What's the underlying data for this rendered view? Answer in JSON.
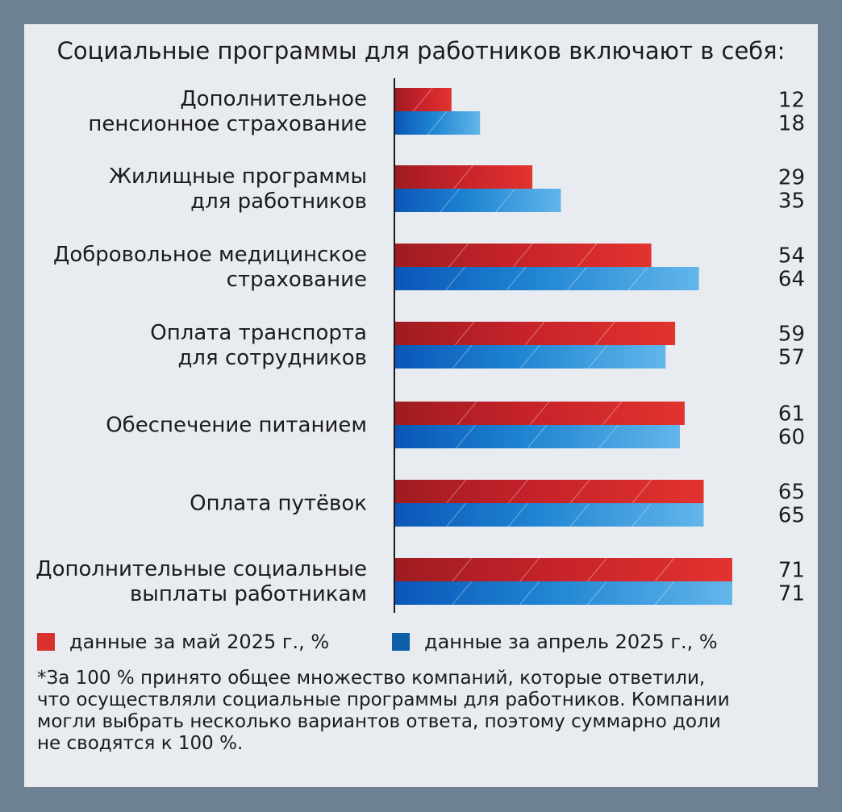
{
  "title": "Социальные программы для работников включают в себя:",
  "colors": {
    "may": "#d9282f",
    "april": "#1a72c8"
  },
  "chart_data": {
    "type": "bar",
    "orientation": "horizontal",
    "categories": [
      [
        "Дополнительное",
        "пенсионное страхование"
      ],
      [
        "Жилищные программы",
        "для работников"
      ],
      [
        "Добровольное медицинское",
        "страхование"
      ],
      [
        "Оплата транспорта",
        "для сотрудников"
      ],
      [
        "Обеспечение питанием"
      ],
      [
        "Оплата путёвок"
      ],
      [
        "Дополнительные социальные",
        "выплаты работникам"
      ]
    ],
    "series": [
      {
        "name": "данные за май 2025 г., %",
        "color": "#d9282f",
        "values": [
          12,
          29,
          54,
          59,
          61,
          65,
          71
        ]
      },
      {
        "name": "данные за апрель 2025 г., %",
        "color": "#1a72c8",
        "values": [
          18,
          35,
          64,
          57,
          60,
          65,
          71
        ]
      }
    ],
    "xlim": [
      0,
      71
    ],
    "grid": false,
    "legend_position": "bottom"
  },
  "legend": {
    "may": "данные за май 2025 г., %",
    "april": "данные за апрель 2025 г., %"
  },
  "note": [
    "*За 100 % принято общее множество компаний, которые ответили,",
    "что осуществляли социальные программы для работников. Компании",
    "могли выбрать несколько вариантов ответа, поэтому суммарно доли",
    "не сводятся к 100 %."
  ]
}
